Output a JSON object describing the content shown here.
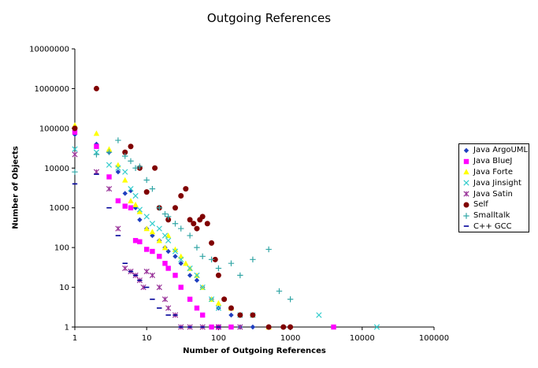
{
  "chart_data": {
    "type": "scatter",
    "title": "Outgoing References",
    "xlabel": "Number of Outgoing References",
    "ylabel": "Number of Objects",
    "xscale": "log",
    "yscale": "log",
    "xlim": [
      1,
      100000
    ],
    "ylim": [
      1,
      10000000
    ],
    "x_ticks": [
      "1",
      "10",
      "100",
      "1000",
      "10000",
      "100000"
    ],
    "y_ticks": [
      "1",
      "10",
      "100",
      "1000",
      "10000",
      "100000",
      "1000000",
      "10000000"
    ],
    "grid": false,
    "legend_position": "right",
    "series": [
      {
        "name": "Java ArgoUML",
        "marker": "diamond",
        "color": "#1f3fbf",
        "points": [
          [
            1,
            70000
          ],
          [
            2,
            40000
          ],
          [
            3,
            25000
          ],
          [
            4,
            8000
          ],
          [
            5,
            2300
          ],
          [
            6,
            2700
          ],
          [
            7,
            1000
          ],
          [
            8,
            500
          ],
          [
            10,
            300
          ],
          [
            12,
            200
          ],
          [
            15,
            150
          ],
          [
            18,
            100
          ],
          [
            20,
            80
          ],
          [
            25,
            60
          ],
          [
            30,
            40
          ],
          [
            40,
            20
          ],
          [
            50,
            15
          ],
          [
            60,
            10
          ],
          [
            80,
            5
          ],
          [
            100,
            3
          ],
          [
            150,
            2
          ],
          [
            200,
            1
          ],
          [
            300,
            1
          ],
          [
            500,
            1
          ]
        ]
      },
      {
        "name": "Java BlueJ",
        "marker": "square",
        "color": "#ff00ff",
        "points": [
          [
            1,
            80000
          ],
          [
            2,
            35000
          ],
          [
            3,
            6000
          ],
          [
            4,
            1500
          ],
          [
            5,
            1100
          ],
          [
            6,
            1000
          ],
          [
            7,
            150
          ],
          [
            8,
            140
          ],
          [
            10,
            90
          ],
          [
            12,
            80
          ],
          [
            15,
            60
          ],
          [
            18,
            40
          ],
          [
            20,
            30
          ],
          [
            25,
            20
          ],
          [
            30,
            10
          ],
          [
            40,
            5
          ],
          [
            50,
            3
          ],
          [
            60,
            2
          ],
          [
            80,
            1
          ],
          [
            100,
            1
          ],
          [
            150,
            1
          ],
          [
            4000,
            1
          ]
        ]
      },
      {
        "name": "Java Forte",
        "marker": "triangle",
        "color": "#ffff00",
        "points": [
          [
            1,
            120000
          ],
          [
            2,
            75000
          ],
          [
            3,
            30000
          ],
          [
            4,
            12000
          ],
          [
            5,
            5000
          ],
          [
            6,
            1500
          ],
          [
            7,
            1200
          ],
          [
            8,
            800
          ],
          [
            10,
            300
          ],
          [
            12,
            250
          ],
          [
            15,
            150
          ],
          [
            18,
            100
          ],
          [
            20,
            200
          ],
          [
            25,
            90
          ],
          [
            30,
            60
          ],
          [
            35,
            40
          ],
          [
            40,
            30
          ],
          [
            50,
            20
          ],
          [
            60,
            10
          ],
          [
            80,
            5
          ],
          [
            100,
            4
          ],
          [
            150,
            3
          ],
          [
            300,
            2
          ],
          [
            500,
            1
          ]
        ]
      },
      {
        "name": "Java Jinsight",
        "marker": "x",
        "color": "#33cccc",
        "points": [
          [
            1,
            30000
          ],
          [
            2,
            25000
          ],
          [
            3,
            12000
          ],
          [
            4,
            10000
          ],
          [
            5,
            8000
          ],
          [
            6,
            3000
          ],
          [
            7,
            2000
          ],
          [
            8,
            900
          ],
          [
            10,
            600
          ],
          [
            12,
            400
          ],
          [
            15,
            300
          ],
          [
            18,
            200
          ],
          [
            20,
            150
          ],
          [
            25,
            80
          ],
          [
            30,
            50
          ],
          [
            40,
            30
          ],
          [
            50,
            20
          ],
          [
            60,
            10
          ],
          [
            80,
            5
          ],
          [
            100,
            3
          ],
          [
            200,
            2
          ],
          [
            300,
            2
          ],
          [
            2500,
            2
          ],
          [
            16000,
            1
          ]
        ]
      },
      {
        "name": "Java Satin",
        "marker": "asterisk",
        "color": "#993399",
        "points": [
          [
            1,
            22000
          ],
          [
            2,
            8000
          ],
          [
            3,
            3000
          ],
          [
            4,
            300
          ],
          [
            5,
            30
          ],
          [
            6,
            25
          ],
          [
            7,
            20
          ],
          [
            8,
            15
          ],
          [
            9,
            10
          ],
          [
            10,
            25
          ],
          [
            12,
            20
          ],
          [
            15,
            10
          ],
          [
            18,
            5
          ],
          [
            20,
            3
          ],
          [
            25,
            2
          ],
          [
            30,
            1
          ],
          [
            40,
            1
          ],
          [
            60,
            1
          ],
          [
            100,
            1
          ],
          [
            200,
            1
          ]
        ]
      },
      {
        "name": "Self",
        "marker": "circle",
        "color": "#800000",
        "points": [
          [
            1,
            100000
          ],
          [
            2,
            1000000
          ],
          [
            5,
            25000
          ],
          [
            6,
            35000
          ],
          [
            8,
            10000
          ],
          [
            13,
            10000
          ],
          [
            10,
            2500
          ],
          [
            15,
            1000
          ],
          [
            20,
            500
          ],
          [
            25,
            1000
          ],
          [
            30,
            2000
          ],
          [
            35,
            3000
          ],
          [
            40,
            500
          ],
          [
            45,
            400
          ],
          [
            50,
            300
          ],
          [
            55,
            500
          ],
          [
            60,
            600
          ],
          [
            70,
            400
          ],
          [
            80,
            130
          ],
          [
            90,
            50
          ],
          [
            100,
            20
          ],
          [
            120,
            5
          ],
          [
            150,
            3
          ],
          [
            200,
            2
          ],
          [
            300,
            2
          ],
          [
            500,
            1
          ],
          [
            800,
            1
          ],
          [
            1000,
            1
          ]
        ]
      },
      {
        "name": "Smalltalk",
        "marker": "plus",
        "color": "#33a6a6",
        "points": [
          [
            1,
            8000
          ],
          [
            2,
            22000
          ],
          [
            3,
            25000
          ],
          [
            4,
            50000
          ],
          [
            5,
            20000
          ],
          [
            6,
            15000
          ],
          [
            7,
            10000
          ],
          [
            8,
            11000
          ],
          [
            10,
            5000
          ],
          [
            12,
            3000
          ],
          [
            15,
            1000
          ],
          [
            18,
            700
          ],
          [
            20,
            600
          ],
          [
            25,
            400
          ],
          [
            30,
            300
          ],
          [
            40,
            200
          ],
          [
            50,
            100
          ],
          [
            60,
            60
          ],
          [
            80,
            50
          ],
          [
            100,
            30
          ],
          [
            150,
            40
          ],
          [
            200,
            20
          ],
          [
            300,
            50
          ],
          [
            500,
            90
          ],
          [
            700,
            8
          ],
          [
            1000,
            5
          ]
        ]
      },
      {
        "name": "C++ GCC",
        "marker": "dash",
        "color": "#000099",
        "points": [
          [
            1,
            4000
          ],
          [
            2,
            7000
          ],
          [
            3,
            1000
          ],
          [
            4,
            200
          ],
          [
            5,
            40
          ],
          [
            6,
            25
          ],
          [
            7,
            20
          ],
          [
            8,
            15
          ],
          [
            10,
            10
          ],
          [
            12,
            5
          ],
          [
            15,
            3
          ],
          [
            20,
            2
          ],
          [
            25,
            2
          ],
          [
            30,
            1
          ],
          [
            40,
            1
          ],
          [
            60,
            1
          ],
          [
            100,
            1
          ]
        ]
      }
    ]
  }
}
